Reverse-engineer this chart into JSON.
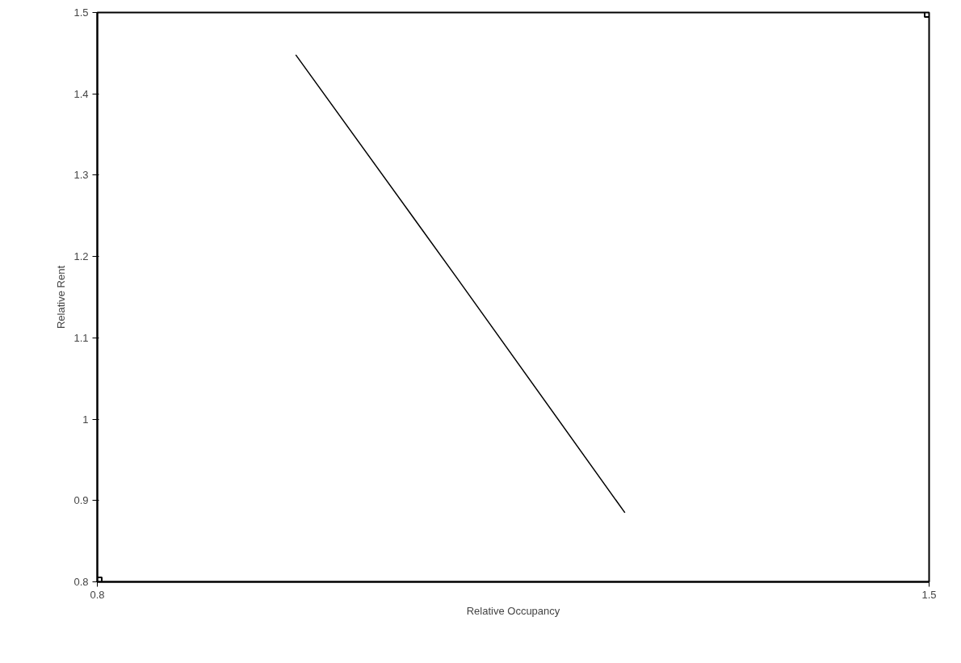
{
  "chart_data": {
    "type": "line",
    "xlabel": "Relative Occupancy",
    "ylabel": "Relative Rent",
    "xlim": [
      0.8,
      1.5
    ],
    "ylim": [
      0.8,
      1.5
    ],
    "xticks": [
      0.8,
      1.5
    ],
    "yticks": [
      0.8,
      0.9,
      1,
      1.1,
      1.2,
      1.3,
      1.4,
      1.5
    ],
    "grid": false,
    "series": [
      {
        "color": "#000000",
        "x": [
          0.967,
          1.102,
          1.244
        ],
        "values": [
          1.448,
          1.175,
          0.885
        ]
      },
      {
        "type": "scatter",
        "color": "#000000",
        "marker": "square",
        "x": [
          0.8,
          1.5
        ],
        "values": [
          0.8,
          1.5
        ]
      }
    ]
  }
}
